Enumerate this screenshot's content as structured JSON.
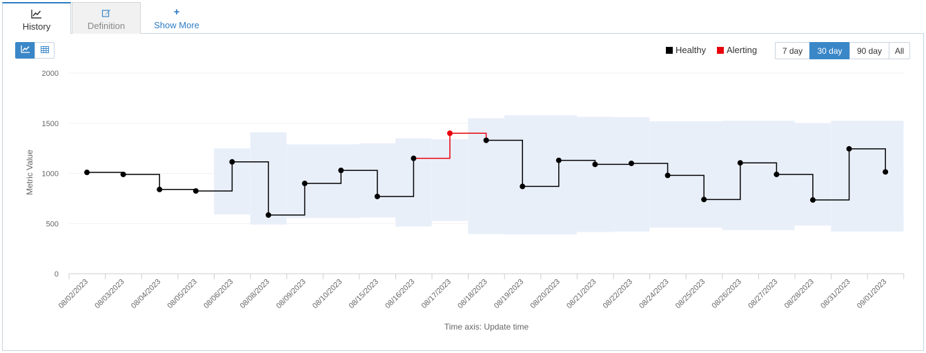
{
  "tabs": [
    {
      "label": "History",
      "icon": "line-chart-icon",
      "active": true
    },
    {
      "label": "Definition",
      "icon": "edit-icon",
      "active": false
    },
    {
      "label": "Show More",
      "icon": "plus-icon",
      "active": false
    }
  ],
  "view_toggle": {
    "chart_icon": "line-chart-icon",
    "table_icon": "table-icon",
    "active": "chart"
  },
  "legend": [
    {
      "label": "Healthy",
      "color": "#000000"
    },
    {
      "label": "Alerting",
      "color": "#e8000b"
    }
  ],
  "range_buttons": [
    {
      "label": "7 day",
      "active": false
    },
    {
      "label": "30 day",
      "active": true
    },
    {
      "label": "90 day",
      "active": false
    },
    {
      "label": "All",
      "active": false
    }
  ],
  "colors": {
    "accent": "#3a87c8",
    "band": "#e9eff9",
    "healthy": "#000000",
    "alerting": "#e8000b"
  },
  "chart_data": {
    "type": "line",
    "step": true,
    "xlabel": "Time axis: Update time",
    "ylabel": "Metric Value",
    "ylim": [
      0,
      2000
    ],
    "yticks": [
      0,
      500,
      1000,
      1500,
      2000
    ],
    "grid": true,
    "legend_position": "top-right",
    "categories": [
      "08/02/2023",
      "08/03/2023",
      "08/04/2023",
      "08/05/2023",
      "08/06/2023",
      "08/08/2023",
      "08/09/2023",
      "08/10/2023",
      "08/15/2023",
      "08/16/2023",
      "08/17/2023",
      "08/18/2023",
      "08/19/2023",
      "08/20/2023",
      "08/21/2023",
      "08/22/2023",
      "08/24/2023",
      "08/25/2023",
      "08/26/2023",
      "08/27/2023",
      "08/28/2023",
      "08/31/2023",
      "09/01/2023"
    ],
    "series": [
      {
        "name": "Metric Value",
        "values": [
          1010,
          990,
          840,
          825,
          1115,
          585,
          900,
          1030,
          770,
          1150,
          1400,
          1330,
          870,
          1130,
          1090,
          1100,
          980,
          740,
          1105,
          990,
          735,
          1245,
          1015
        ],
        "states": [
          "Healthy",
          "Healthy",
          "Healthy",
          "Healthy",
          "Healthy",
          "Healthy",
          "Healthy",
          "Healthy",
          "Healthy",
          "Healthy",
          "Alerting",
          "Healthy",
          "Healthy",
          "Healthy",
          "Healthy",
          "Healthy",
          "Healthy",
          "Healthy",
          "Healthy",
          "Healthy",
          "Healthy",
          "Healthy",
          "Healthy"
        ]
      }
    ],
    "band": {
      "lower": [
        null,
        null,
        null,
        null,
        590,
        490,
        555,
        555,
        560,
        470,
        525,
        395,
        390,
        390,
        415,
        420,
        460,
        460,
        435,
        435,
        480,
        420,
        420
      ],
      "upper": [
        null,
        null,
        null,
        null,
        1250,
        1410,
        1290,
        1290,
        1300,
        1350,
        1340,
        1550,
        1580,
        1580,
        1565,
        1560,
        1520,
        1520,
        1525,
        1525,
        1500,
        1525,
        1525
      ]
    }
  }
}
